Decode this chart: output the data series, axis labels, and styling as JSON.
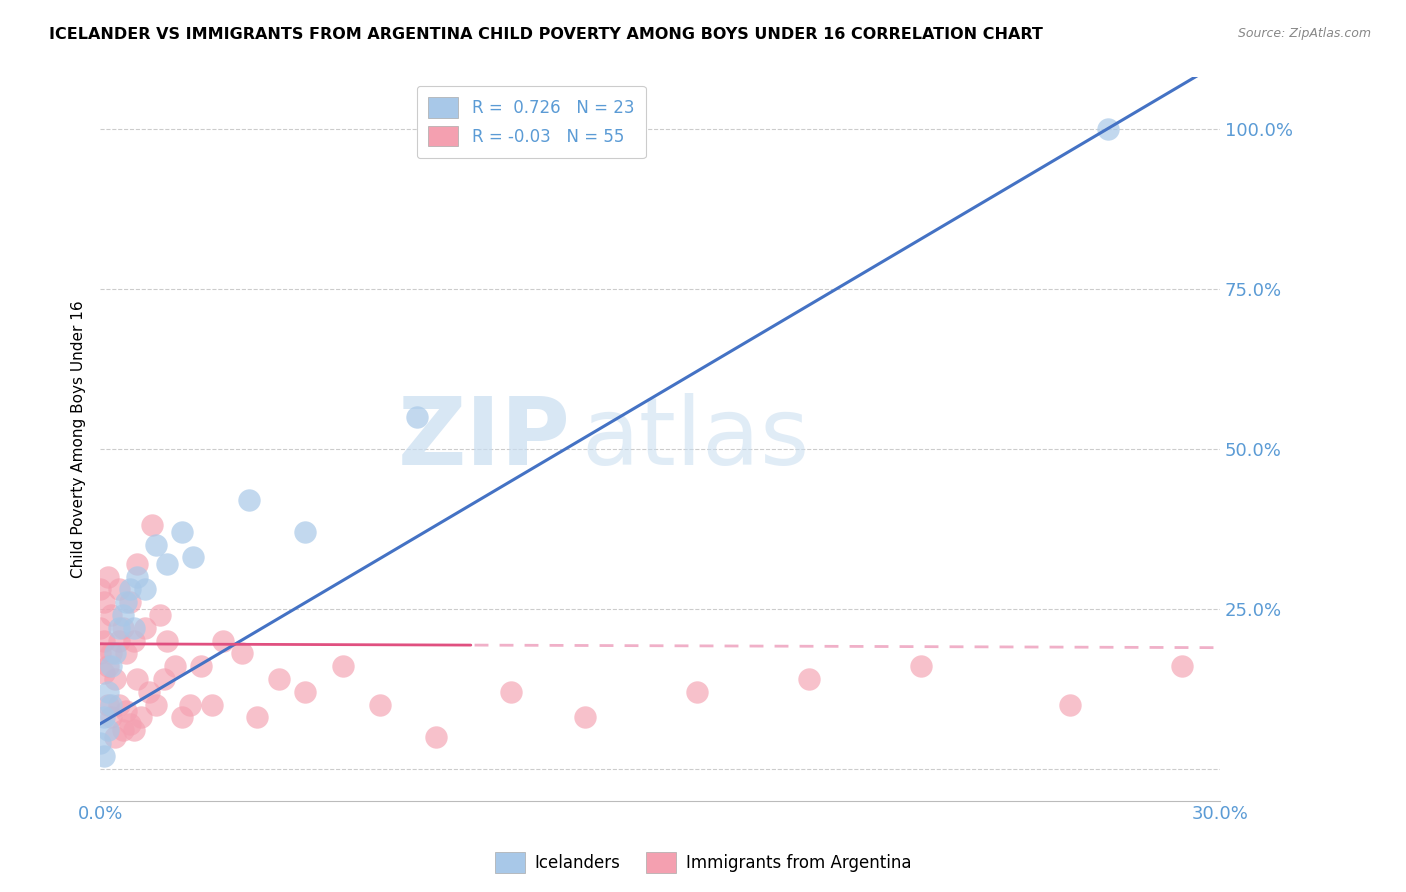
{
  "title": "ICELANDER VS IMMIGRANTS FROM ARGENTINA CHILD POVERTY AMONG BOYS UNDER 16 CORRELATION CHART",
  "source": "Source: ZipAtlas.com",
  "tick_color": "#5b9bd5",
  "ylabel": "Child Poverty Among Boys Under 16",
  "xmin": 0.0,
  "xmax": 0.3,
  "ymin": -0.05,
  "ymax": 1.08,
  "icelanders_R": 0.726,
  "icelanders_N": 23,
  "argentina_R": -0.03,
  "argentina_N": 55,
  "blue_color": "#a8c8e8",
  "pink_color": "#f4a0b0",
  "blue_line_color": "#4472c4",
  "pink_line_color": "#e05080",
  "pink_dash_color": "#f0b0c8",
  "watermark_zip": "ZIP",
  "watermark_atlas": "atlas",
  "icelanders_x": [
    0.0,
    0.001,
    0.001,
    0.002,
    0.002,
    0.003,
    0.003,
    0.004,
    0.005,
    0.006,
    0.007,
    0.008,
    0.009,
    0.01,
    0.012,
    0.015,
    0.018,
    0.022,
    0.025,
    0.04,
    0.055,
    0.085,
    0.27
  ],
  "icelanders_y": [
    0.04,
    0.02,
    0.08,
    0.06,
    0.12,
    0.1,
    0.16,
    0.18,
    0.22,
    0.24,
    0.26,
    0.28,
    0.22,
    0.3,
    0.28,
    0.35,
    0.32,
    0.37,
    0.33,
    0.42,
    0.37,
    0.55,
    1.0
  ],
  "argentina_x": [
    0.0,
    0.0,
    0.0,
    0.001,
    0.001,
    0.001,
    0.002,
    0.002,
    0.002,
    0.003,
    0.003,
    0.003,
    0.004,
    0.004,
    0.005,
    0.005,
    0.005,
    0.006,
    0.006,
    0.007,
    0.007,
    0.008,
    0.008,
    0.009,
    0.009,
    0.01,
    0.01,
    0.011,
    0.012,
    0.013,
    0.014,
    0.015,
    0.016,
    0.017,
    0.018,
    0.02,
    0.022,
    0.024,
    0.027,
    0.03,
    0.033,
    0.038,
    0.042,
    0.048,
    0.055,
    0.065,
    0.075,
    0.09,
    0.11,
    0.13,
    0.16,
    0.19,
    0.22,
    0.26,
    0.29
  ],
  "argentina_y": [
    0.18,
    0.22,
    0.28,
    0.15,
    0.2,
    0.26,
    0.1,
    0.16,
    0.3,
    0.08,
    0.18,
    0.24,
    0.05,
    0.14,
    0.1,
    0.2,
    0.28,
    0.06,
    0.22,
    0.09,
    0.18,
    0.07,
    0.26,
    0.06,
    0.2,
    0.14,
    0.32,
    0.08,
    0.22,
    0.12,
    0.38,
    0.1,
    0.24,
    0.14,
    0.2,
    0.16,
    0.08,
    0.1,
    0.16,
    0.1,
    0.2,
    0.18,
    0.08,
    0.14,
    0.12,
    0.16,
    0.1,
    0.05,
    0.12,
    0.08,
    0.12,
    0.14,
    0.16,
    0.1,
    0.16
  ],
  "yticks": [
    0.0,
    0.25,
    0.5,
    0.75,
    1.0
  ],
  "ytick_labels": [
    "",
    "25.0%",
    "50.0%",
    "75.0%",
    "100.0%"
  ],
  "xticks": [
    0.0,
    0.3
  ],
  "xtick_labels": [
    "0.0%",
    "30.0%"
  ],
  "grid_yticks": [
    0.0,
    0.25,
    0.5,
    0.75,
    1.0
  ]
}
